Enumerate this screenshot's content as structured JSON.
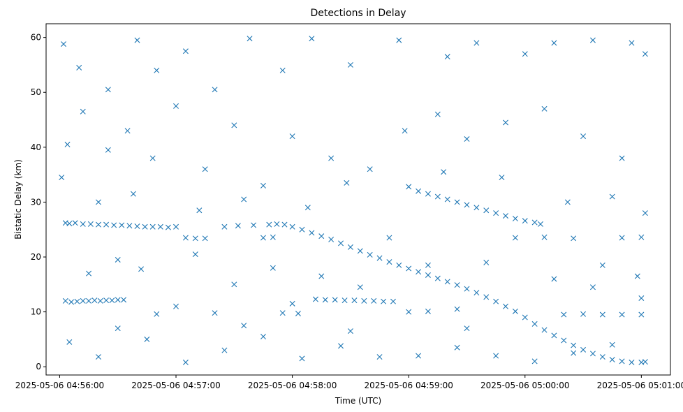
{
  "chart_data": {
    "type": "scatter",
    "title": "Detections in Delay",
    "xlabel": "Time (UTC)",
    "ylabel": "Bistatic Delay (km)",
    "x_ticks": [
      "2025-05-06 04:56:00",
      "2025-05-06 04:57:00",
      "2025-05-06 04:58:00",
      "2025-05-06 04:59:00",
      "2025-05-06 05:00:00",
      "2025-05-06 05:01:00"
    ],
    "y_ticks": [
      0,
      10,
      20,
      30,
      40,
      50,
      60
    ],
    "xlim": [
      "2025-05-06 04:55:53",
      "2025-05-06 05:01:15"
    ],
    "ylim": [
      -1.5,
      62.5
    ],
    "grid": false,
    "marker": "x",
    "color": "#1f77b4",
    "series": [
      {
        "points": [
          [
            "2025-05-06 04:56:03",
            26.2
          ],
          [
            "2025-05-06 04:56:05",
            26.1
          ],
          [
            "2025-05-06 04:56:08",
            26.2
          ],
          [
            "2025-05-06 04:56:12",
            26.0
          ],
          [
            "2025-05-06 04:56:16",
            26.0
          ],
          [
            "2025-05-06 04:56:20",
            25.9
          ],
          [
            "2025-05-06 04:56:24",
            25.9
          ],
          [
            "2025-05-06 04:56:28",
            25.8
          ],
          [
            "2025-05-06 04:56:32",
            25.8
          ],
          [
            "2025-05-06 04:56:36",
            25.7
          ],
          [
            "2025-05-06 04:56:40",
            25.6
          ],
          [
            "2025-05-06 04:56:44",
            25.5
          ],
          [
            "2025-05-06 04:56:48",
            25.5
          ],
          [
            "2025-05-06 04:56:52",
            25.5
          ],
          [
            "2025-05-06 04:56:56",
            25.4
          ],
          [
            "2025-05-06 04:57:00",
            25.5
          ],
          [
            "2025-05-06 04:56:03",
            12.0
          ],
          [
            "2025-05-06 04:56:06",
            11.8
          ],
          [
            "2025-05-06 04:56:09",
            11.9
          ],
          [
            "2025-05-06 04:56:12",
            12.0
          ],
          [
            "2025-05-06 04:56:15",
            12.0
          ],
          [
            "2025-05-06 04:56:18",
            12.1
          ],
          [
            "2025-05-06 04:56:21",
            12.0
          ],
          [
            "2025-05-06 04:56:24",
            12.1
          ],
          [
            "2025-05-06 04:56:27",
            12.1
          ],
          [
            "2025-05-06 04:56:30",
            12.2
          ],
          [
            "2025-05-06 04:56:33",
            12.2
          ],
          [
            "2025-05-06 04:57:25",
            25.5
          ],
          [
            "2025-05-06 04:57:32",
            25.7
          ],
          [
            "2025-05-06 04:57:40",
            25.8
          ],
          [
            "2025-05-06 04:57:48",
            25.9
          ],
          [
            "2025-05-06 04:57:52",
            26.0
          ],
          [
            "2025-05-06 04:57:56",
            25.9
          ],
          [
            "2025-05-06 04:58:00",
            25.5
          ],
          [
            "2025-05-06 04:58:05",
            25.0
          ],
          [
            "2025-05-06 04:58:10",
            24.4
          ],
          [
            "2025-05-06 04:58:15",
            23.8
          ],
          [
            "2025-05-06 04:58:20",
            23.2
          ],
          [
            "2025-05-06 04:58:25",
            22.5
          ],
          [
            "2025-05-06 04:58:30",
            21.8
          ],
          [
            "2025-05-06 04:58:35",
            21.1
          ],
          [
            "2025-05-06 04:58:40",
            20.4
          ],
          [
            "2025-05-06 04:58:45",
            19.8
          ],
          [
            "2025-05-06 04:58:50",
            19.1
          ],
          [
            "2025-05-06 04:58:55",
            18.5
          ],
          [
            "2025-05-06 04:59:00",
            17.9
          ],
          [
            "2025-05-06 04:59:05",
            17.3
          ],
          [
            "2025-05-06 04:59:10",
            16.7
          ],
          [
            "2025-05-06 04:59:15",
            16.1
          ],
          [
            "2025-05-06 04:59:20",
            15.5
          ],
          [
            "2025-05-06 04:59:25",
            14.9
          ],
          [
            "2025-05-06 04:59:30",
            14.2
          ],
          [
            "2025-05-06 04:59:35",
            13.5
          ],
          [
            "2025-05-06 04:59:40",
            12.7
          ],
          [
            "2025-05-06 04:59:45",
            11.9
          ],
          [
            "2025-05-06 04:59:50",
            11.0
          ],
          [
            "2025-05-06 04:59:55",
            10.1
          ],
          [
            "2025-05-06 05:00:00",
            9.0
          ],
          [
            "2025-05-06 05:00:05",
            7.8
          ],
          [
            "2025-05-06 05:00:10",
            6.7
          ],
          [
            "2025-05-06 05:00:15",
            5.7
          ],
          [
            "2025-05-06 05:00:20",
            4.8
          ],
          [
            "2025-05-06 05:00:25",
            3.9
          ],
          [
            "2025-05-06 05:00:30",
            3.1
          ],
          [
            "2025-05-06 05:00:35",
            2.4
          ],
          [
            "2025-05-06 05:00:40",
            1.8
          ],
          [
            "2025-05-06 05:00:45",
            1.3
          ],
          [
            "2025-05-06 05:00:50",
            1.0
          ],
          [
            "2025-05-06 05:00:55",
            0.8
          ],
          [
            "2025-05-06 05:01:00",
            0.8
          ],
          [
            "2025-05-06 05:01:02",
            0.9
          ],
          [
            "2025-05-06 04:58:12",
            12.3
          ],
          [
            "2025-05-06 04:58:17",
            12.2
          ],
          [
            "2025-05-06 04:58:22",
            12.2
          ],
          [
            "2025-05-06 04:58:27",
            12.1
          ],
          [
            "2025-05-06 04:58:32",
            12.1
          ],
          [
            "2025-05-06 04:58:37",
            12.0
          ],
          [
            "2025-05-06 04:58:42",
            12.0
          ],
          [
            "2025-05-06 04:58:47",
            11.9
          ],
          [
            "2025-05-06 04:58:52",
            11.9
          ],
          [
            "2025-05-06 04:59:00",
            32.8
          ],
          [
            "2025-05-06 04:59:05",
            32.0
          ],
          [
            "2025-05-06 04:59:10",
            31.5
          ],
          [
            "2025-05-06 04:59:15",
            31.0
          ],
          [
            "2025-05-06 04:59:20",
            30.5
          ],
          [
            "2025-05-06 04:59:25",
            30.0
          ],
          [
            "2025-05-06 04:59:30",
            29.5
          ],
          [
            "2025-05-06 04:59:35",
            29.0
          ],
          [
            "2025-05-06 04:59:40",
            28.5
          ],
          [
            "2025-05-06 04:59:45",
            28.0
          ],
          [
            "2025-05-06 04:59:50",
            27.5
          ],
          [
            "2025-05-06 04:59:55",
            27.0
          ],
          [
            "2025-05-06 05:00:00",
            26.6
          ],
          [
            "2025-05-06 05:00:05",
            26.3
          ],
          [
            "2025-05-06 05:00:08",
            26.0
          ],
          [
            "2025-05-06 04:57:05",
            23.5
          ],
          [
            "2025-05-06 04:57:10",
            23.4
          ],
          [
            "2025-05-06 04:57:15",
            23.4
          ],
          [
            "2025-05-06 04:57:45",
            23.5
          ],
          [
            "2025-05-06 04:57:50",
            23.6
          ],
          [
            "2025-05-06 04:58:50",
            23.5
          ],
          [
            "2025-05-06 04:59:55",
            23.5
          ],
          [
            "2025-05-06 05:00:10",
            23.6
          ],
          [
            "2025-05-06 05:00:25",
            23.4
          ],
          [
            "2025-05-06 05:00:50",
            23.5
          ],
          [
            "2025-05-06 05:01:00",
            23.6
          ],
          [
            "2025-05-06 04:56:50",
            9.6
          ],
          [
            "2025-05-06 04:57:20",
            9.8
          ],
          [
            "2025-05-06 04:57:55",
            9.8
          ],
          [
            "2025-05-06 04:58:03",
            9.7
          ],
          [
            "2025-05-06 04:59:00",
            10.0
          ],
          [
            "2025-05-06 04:59:10",
            10.1
          ],
          [
            "2025-05-06 04:59:25",
            10.5
          ],
          [
            "2025-05-06 05:00:20",
            9.5
          ],
          [
            "2025-05-06 05:00:30",
            9.6
          ],
          [
            "2025-05-06 05:00:40",
            9.5
          ],
          [
            "2025-05-06 05:01:00",
            9.5
          ],
          [
            "2025-05-06 04:56:02",
            58.8
          ],
          [
            "2025-05-06 04:56:10",
            54.5
          ],
          [
            "2025-05-06 04:56:25",
            50.5
          ],
          [
            "2025-05-06 04:56:40",
            59.5
          ],
          [
            "2025-05-06 04:56:50",
            54.0
          ],
          [
            "2025-05-06 04:57:05",
            57.5
          ],
          [
            "2025-05-06 04:57:20",
            50.5
          ],
          [
            "2025-05-06 04:57:38",
            59.8
          ],
          [
            "2025-05-06 04:57:55",
            54.0
          ],
          [
            "2025-05-06 04:58:10",
            59.8
          ],
          [
            "2025-05-06 04:58:30",
            55.0
          ],
          [
            "2025-05-06 04:58:55",
            59.5
          ],
          [
            "2025-05-06 04:59:20",
            56.5
          ],
          [
            "2025-05-06 04:59:35",
            59.0
          ],
          [
            "2025-05-06 05:00:00",
            57.0
          ],
          [
            "2025-05-06 05:00:15",
            59.0
          ],
          [
            "2025-05-06 05:00:35",
            59.5
          ],
          [
            "2025-05-06 05:00:55",
            59.0
          ],
          [
            "2025-05-06 05:01:02",
            57.0
          ],
          [
            "2025-05-06 04:56:01",
            34.5
          ],
          [
            "2025-05-06 04:56:04",
            40.5
          ],
          [
            "2025-05-06 04:56:12",
            46.5
          ],
          [
            "2025-05-06 04:56:25",
            39.5
          ],
          [
            "2025-05-06 04:56:35",
            43.0
          ],
          [
            "2025-05-06 04:56:48",
            38.0
          ],
          [
            "2025-05-06 04:57:00",
            47.5
          ],
          [
            "2025-05-06 04:57:15",
            36.0
          ],
          [
            "2025-05-06 04:57:30",
            44.0
          ],
          [
            "2025-05-06 04:57:45",
            33.0
          ],
          [
            "2025-05-06 04:58:00",
            42.0
          ],
          [
            "2025-05-06 04:58:20",
            38.0
          ],
          [
            "2025-05-06 04:58:40",
            36.0
          ],
          [
            "2025-05-06 04:58:58",
            43.0
          ],
          [
            "2025-05-06 04:59:15",
            46.0
          ],
          [
            "2025-05-06 04:59:30",
            41.5
          ],
          [
            "2025-05-06 04:59:50",
            44.5
          ],
          [
            "2025-05-06 05:00:10",
            47.0
          ],
          [
            "2025-05-06 05:00:30",
            42.0
          ],
          [
            "2025-05-06 05:00:50",
            38.0
          ],
          [
            "2025-05-06 04:56:05",
            4.5
          ],
          [
            "2025-05-06 04:56:20",
            1.8
          ],
          [
            "2025-05-06 04:56:45",
            5.0
          ],
          [
            "2025-05-06 04:57:05",
            0.8
          ],
          [
            "2025-05-06 04:57:25",
            3.0
          ],
          [
            "2025-05-06 04:57:45",
            5.5
          ],
          [
            "2025-05-06 04:58:05",
            1.5
          ],
          [
            "2025-05-06 04:58:25",
            3.8
          ],
          [
            "2025-05-06 04:58:45",
            1.8
          ],
          [
            "2025-05-06 04:59:05",
            2.0
          ],
          [
            "2025-05-06 04:59:25",
            3.5
          ],
          [
            "2025-05-06 04:59:45",
            2.0
          ],
          [
            "2025-05-06 05:00:05",
            1.0
          ],
          [
            "2025-05-06 05:00:25",
            2.5
          ],
          [
            "2025-05-06 05:00:45",
            4.0
          ],
          [
            "2025-05-06 04:56:15",
            17.0
          ],
          [
            "2025-05-06 04:56:30",
            19.5
          ],
          [
            "2025-05-06 04:56:42",
            17.8
          ],
          [
            "2025-05-06 04:57:10",
            20.5
          ],
          [
            "2025-05-06 04:57:30",
            15.0
          ],
          [
            "2025-05-06 04:57:50",
            18.0
          ],
          [
            "2025-05-06 04:58:15",
            16.5
          ],
          [
            "2025-05-06 04:58:35",
            14.5
          ],
          [
            "2025-05-06 04:59:10",
            18.5
          ],
          [
            "2025-05-06 04:59:40",
            19.0
          ],
          [
            "2025-05-06 05:00:15",
            16.0
          ],
          [
            "2025-05-06 05:00:40",
            18.5
          ],
          [
            "2025-05-06 05:00:58",
            16.5
          ],
          [
            "2025-05-06 04:56:20",
            30.0
          ],
          [
            "2025-05-06 04:56:38",
            31.5
          ],
          [
            "2025-05-06 04:57:12",
            28.5
          ],
          [
            "2025-05-06 04:57:35",
            30.5
          ],
          [
            "2025-05-06 04:58:08",
            29.0
          ],
          [
            "2025-05-06 04:58:28",
            33.5
          ],
          [
            "2025-05-06 04:59:18",
            35.5
          ],
          [
            "2025-05-06 04:59:48",
            34.5
          ],
          [
            "2025-05-06 05:00:22",
            30.0
          ],
          [
            "2025-05-06 05:00:45",
            31.0
          ],
          [
            "2025-05-06 05:01:02",
            28.0
          ],
          [
            "2025-05-06 04:56:30",
            7.0
          ],
          [
            "2025-05-06 04:57:00",
            11.0
          ],
          [
            "2025-05-06 04:57:35",
            7.5
          ],
          [
            "2025-05-06 04:58:00",
            11.5
          ],
          [
            "2025-05-06 04:58:30",
            6.5
          ],
          [
            "2025-05-06 04:59:30",
            7.0
          ],
          [
            "2025-05-06 05:00:35",
            14.5
          ],
          [
            "2025-05-06 05:00:50",
            9.5
          ],
          [
            "2025-05-06 05:01:00",
            12.5
          ]
        ]
      }
    ]
  }
}
